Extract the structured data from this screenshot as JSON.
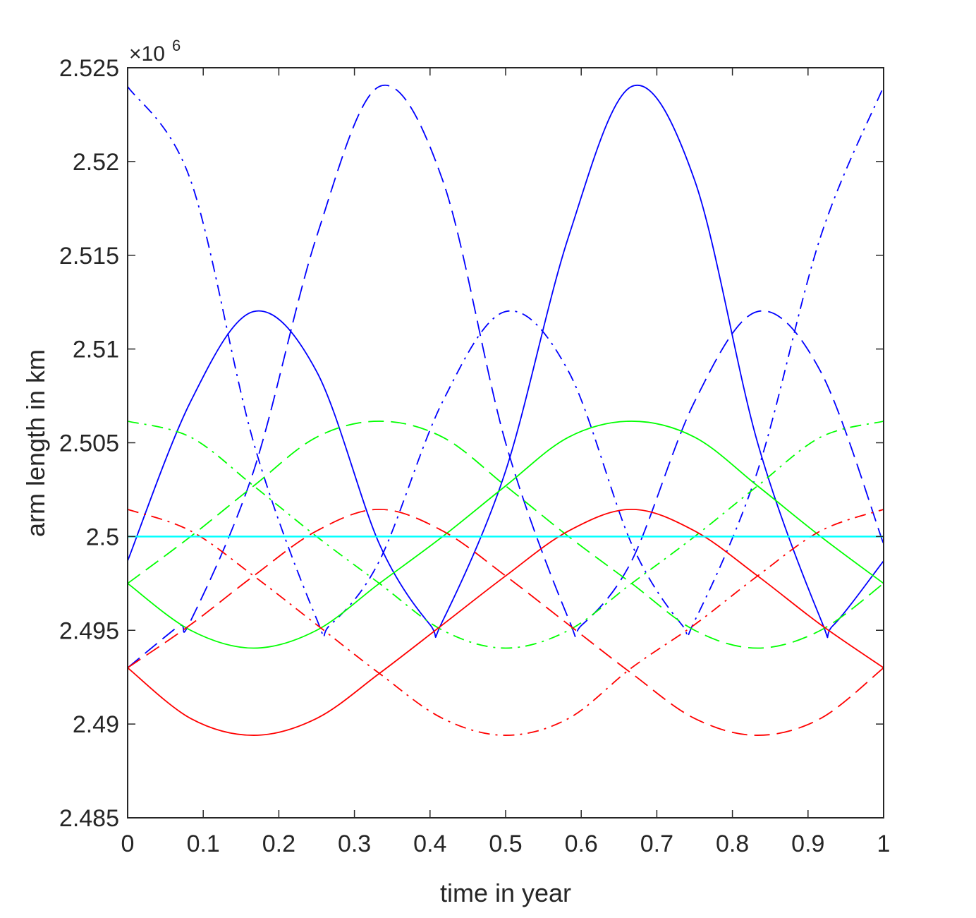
{
  "chart_data": {
    "type": "line",
    "xlabel": "time in year",
    "ylabel": "arm length in km",
    "xlim": [
      0,
      1
    ],
    "ylim": [
      2485000,
      2525000
    ],
    "x_ticks": [
      0,
      0.1,
      0.2,
      0.3,
      0.4,
      0.5,
      0.6,
      0.7,
      0.8,
      0.9,
      1
    ],
    "x_tick_labels": [
      "0",
      "0.1",
      "0.2",
      "0.3",
      "0.4",
      "0.5",
      "0.6",
      "0.7",
      "0.8",
      "0.9",
      "1"
    ],
    "y_ticks": [
      2485000,
      2490000,
      2495000,
      2500000,
      2505000,
      2510000,
      2515000,
      2520000,
      2525000
    ],
    "y_tick_labels": [
      "2.485",
      "2.49",
      "2.495",
      "2.5",
      "2.505",
      "2.51",
      "2.515",
      "2.52",
      "2.525"
    ],
    "y_exponent_label": "×10",
    "y_exponent_power": "6",
    "grid": false,
    "box": true,
    "colors": {
      "blue": "#0000ff",
      "green": "#00ff00",
      "red": "#ff0000",
      "cyan": "#00ffff"
    },
    "series": [
      {
        "color": "blue",
        "style": "solid",
        "x": [
          0,
          0.0833,
          0.1667,
          0.25,
          0.333,
          0.4,
          0.4167,
          0.5,
          0.5833,
          0.6667,
          0.75,
          0.8333,
          0.9167,
          0.933,
          1
        ],
        "y": [
          2498700,
          2507200,
          2512000,
          2508800,
          2499600,
          2495300,
          2495500,
          2503500,
          2516000,
          2524000,
          2519000,
          2505000,
          2495600,
          2495250,
          2498700
        ]
      },
      {
        "color": "blue",
        "style": "dashed",
        "x": [
          0,
          0.0667,
          0.0833,
          0.1667,
          0.25,
          0.333,
          0.4167,
          0.5,
          0.5833,
          0.6,
          0.6667,
          0.75,
          0.8333,
          0.9167,
          1
        ],
        "y": [
          2493000,
          2495200,
          2495500,
          2503500,
          2516000,
          2524000,
          2519000,
          2505000,
          2495600,
          2495250,
          2498700,
          2507200,
          2512000,
          2508800,
          2499600
        ]
      },
      {
        "color": "blue",
        "style": "dashdot",
        "x": [
          0,
          0.0833,
          0.1667,
          0.25,
          0.267,
          0.333,
          0.4167,
          0.5,
          0.5833,
          0.6667,
          0.733,
          0.75,
          0.8333,
          0.9167,
          1
        ],
        "y": [
          2524000,
          2519000,
          2505000,
          2495600,
          2495250,
          2498700,
          2507200,
          2512000,
          2508800,
          2499600,
          2495300,
          2495500,
          2503500,
          2516000,
          2524000
        ]
      },
      {
        "color": "green",
        "style": "solid",
        "x": [
          0,
          0.0833,
          0.1667,
          0.25,
          0.333,
          0.4167,
          0.5,
          0.5833,
          0.6667,
          0.75,
          0.8333,
          0.9167,
          1
        ],
        "y": [
          2497500,
          2495000,
          2494050,
          2495000,
          2497500,
          2500000,
          2502700,
          2505300,
          2506150,
          2505300,
          2502700,
          2500000,
          2497500
        ]
      },
      {
        "color": "green",
        "style": "dashed",
        "x": [
          0,
          0.0833,
          0.1667,
          0.25,
          0.333,
          0.4167,
          0.5,
          0.5833,
          0.6667,
          0.75,
          0.8333,
          0.9167,
          1
        ],
        "y": [
          2497500,
          2500000,
          2502700,
          2505300,
          2506150,
          2505300,
          2502700,
          2500000,
          2497500,
          2495000,
          2494050,
          2495000,
          2497500
        ]
      },
      {
        "color": "green",
        "style": "dashdot",
        "x": [
          0,
          0.0833,
          0.1667,
          0.25,
          0.333,
          0.4167,
          0.5,
          0.5833,
          0.6667,
          0.75,
          0.8333,
          0.9167,
          1
        ],
        "y": [
          2506150,
          2505300,
          2502700,
          2500000,
          2497500,
          2495000,
          2494050,
          2495000,
          2497500,
          2500000,
          2502700,
          2505300,
          2506150
        ]
      },
      {
        "color": "red",
        "style": "solid",
        "x": [
          0,
          0.0833,
          0.1667,
          0.25,
          0.333,
          0.4167,
          0.5,
          0.5833,
          0.6667,
          0.75,
          0.8333,
          0.9167,
          1
        ],
        "y": [
          2493000,
          2490300,
          2489400,
          2490300,
          2492700,
          2495300,
          2497900,
          2500300,
          2501450,
          2500300,
          2497900,
          2495300,
          2493000
        ]
      },
      {
        "color": "red",
        "style": "dashed",
        "x": [
          0,
          0.0833,
          0.1667,
          0.25,
          0.333,
          0.4167,
          0.5,
          0.5833,
          0.6667,
          0.75,
          0.8333,
          0.9167,
          1
        ],
        "y": [
          2493000,
          2495300,
          2497900,
          2500300,
          2501450,
          2500300,
          2497900,
          2495300,
          2492700,
          2490300,
          2489400,
          2490300,
          2493000
        ]
      },
      {
        "color": "red",
        "style": "dashdot",
        "x": [
          0,
          0.0833,
          0.1667,
          0.25,
          0.333,
          0.4167,
          0.5,
          0.5833,
          0.6667,
          0.75,
          0.8333,
          0.9167,
          1
        ],
        "y": [
          2501450,
          2500300,
          2497900,
          2495300,
          2492700,
          2490300,
          2489400,
          2490300,
          2493000,
          2495300,
          2497900,
          2500300,
          2501450
        ]
      },
      {
        "color": "cyan",
        "style": "solid",
        "x": [
          0,
          1
        ],
        "y": [
          2500000,
          2500000
        ]
      }
    ]
  }
}
